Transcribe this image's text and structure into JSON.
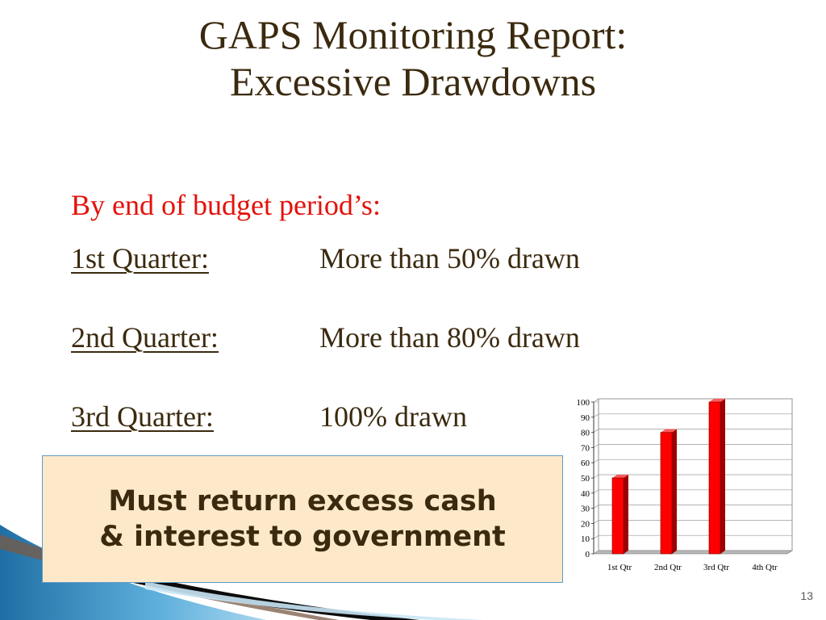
{
  "slide": {
    "title_line1": "GAPS Monitoring Report:",
    "title_line2": "Excessive Drawdowns",
    "subtitle": "By end of budget period’s:",
    "quarters": [
      {
        "label": "1st Quarter:",
        "value": "More than 50% drawn"
      },
      {
        "label": "2nd Quarter:",
        "value": "More than 80% drawn"
      },
      {
        "label": "3rd Quarter:",
        "value": "100% drawn"
      }
    ],
    "callout_line1": "Must return excess cash",
    "callout_line2": "& interest to government",
    "page_number": "13"
  },
  "colors": {
    "title": "#3b2a0f",
    "subtitle": "#e3120b",
    "callout_background": "#fde9c9",
    "callout_border": "#5e9bc6",
    "bar": "#ff0000",
    "bar_shadow": "#9e0000"
  },
  "chart_data": {
    "type": "bar",
    "categories": [
      "1st Qtr",
      "2nd Qtr",
      "3rd Qtr",
      "4th Qtr"
    ],
    "values": [
      50,
      80,
      100,
      0
    ],
    "yticks": [
      0,
      10,
      20,
      30,
      40,
      50,
      60,
      70,
      80,
      90,
      100
    ],
    "ylim": [
      0,
      100
    ],
    "grid": true,
    "legend": "none",
    "title": "",
    "xlabel": "",
    "ylabel": ""
  }
}
